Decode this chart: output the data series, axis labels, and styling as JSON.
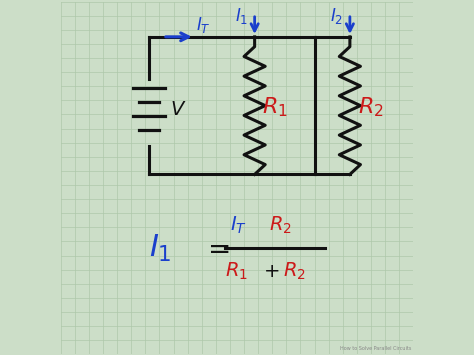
{
  "bg_color": "#ccdec8",
  "grid_color": "#aec8aa",
  "line_color": "#111111",
  "blue_color": "#1a3fcc",
  "red_color": "#cc1a1a",
  "figsize": [
    4.74,
    3.55
  ],
  "dpi": 100
}
